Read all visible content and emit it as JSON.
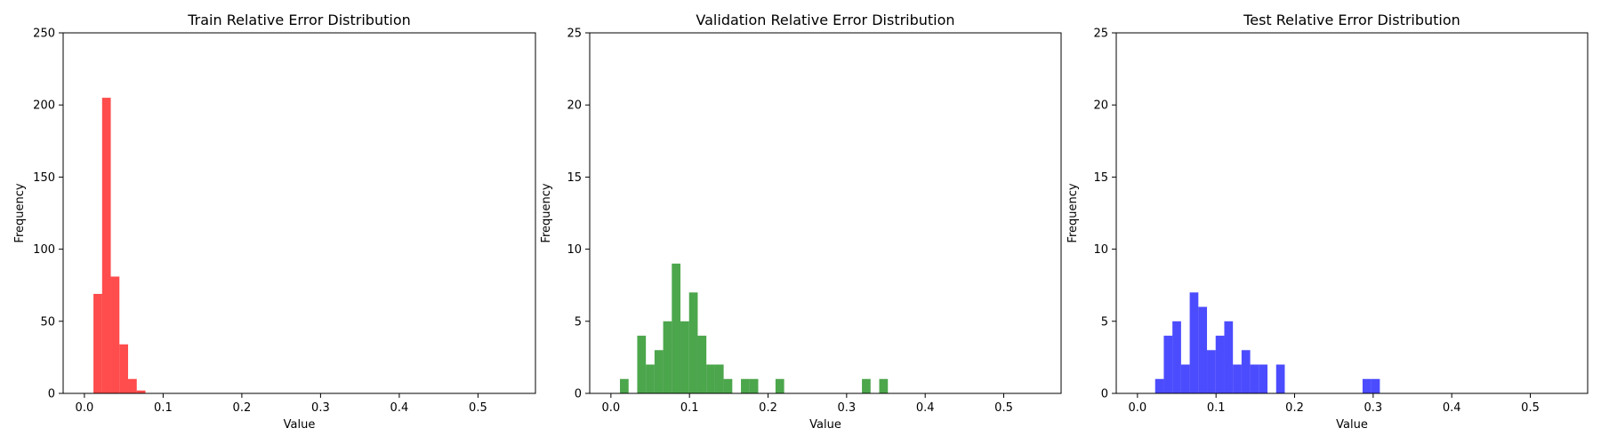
{
  "chart_data": [
    {
      "type": "bar",
      "title": "Train Relative Error Distribution",
      "xlabel": "Value",
      "ylabel": "Frequency",
      "xlim": [
        -0.027,
        0.573
      ],
      "ylim": [
        0,
        250
      ],
      "xticks": [
        "0.0",
        "0.1",
        "0.2",
        "0.3",
        "0.4",
        "0.5"
      ],
      "yticks": [
        "0",
        "50",
        "100",
        "150",
        "200",
        "250"
      ],
      "color": "#ff0000",
      "alpha": 0.7,
      "bins": [
        {
          "x0": 0.0115,
          "x1": 0.0225,
          "value": 69
        },
        {
          "x0": 0.0225,
          "x1": 0.0335,
          "value": 205
        },
        {
          "x0": 0.0335,
          "x1": 0.0445,
          "value": 81
        },
        {
          "x0": 0.0445,
          "x1": 0.0555,
          "value": 34
        },
        {
          "x0": 0.0555,
          "x1": 0.0665,
          "value": 10
        },
        {
          "x0": 0.0665,
          "x1": 0.0775,
          "value": 2
        }
      ]
    },
    {
      "type": "bar",
      "title": "Validation Relative Error Distribution",
      "xlabel": "Value",
      "ylabel": "Frequency",
      "xlim": [
        -0.027,
        0.573
      ],
      "ylim": [
        0,
        25
      ],
      "xticks": [
        "0.0",
        "0.1",
        "0.2",
        "0.3",
        "0.4",
        "0.5"
      ],
      "yticks": [
        "0",
        "5",
        "10",
        "15",
        "20",
        "25"
      ],
      "color": "#008000",
      "alpha": 0.7,
      "bins": [
        {
          "x0": 0.0115,
          "x1": 0.0225,
          "value": 1
        },
        {
          "x0": 0.0335,
          "x1": 0.0445,
          "value": 4
        },
        {
          "x0": 0.0445,
          "x1": 0.0555,
          "value": 2
        },
        {
          "x0": 0.0555,
          "x1": 0.0665,
          "value": 3
        },
        {
          "x0": 0.0665,
          "x1": 0.0775,
          "value": 5
        },
        {
          "x0": 0.0775,
          "x1": 0.0885,
          "value": 9
        },
        {
          "x0": 0.0885,
          "x1": 0.0995,
          "value": 5
        },
        {
          "x0": 0.0995,
          "x1": 0.1105,
          "value": 7
        },
        {
          "x0": 0.1105,
          "x1": 0.1215,
          "value": 4
        },
        {
          "x0": 0.1215,
          "x1": 0.1325,
          "value": 2
        },
        {
          "x0": 0.1325,
          "x1": 0.1435,
          "value": 2
        },
        {
          "x0": 0.1435,
          "x1": 0.1545,
          "value": 1
        },
        {
          "x0": 0.1655,
          "x1": 0.1765,
          "value": 1
        },
        {
          "x0": 0.1765,
          "x1": 0.1875,
          "value": 1
        },
        {
          "x0": 0.2095,
          "x1": 0.2205,
          "value": 1
        },
        {
          "x0": 0.3195,
          "x1": 0.3305,
          "value": 1
        },
        {
          "x0": 0.3415,
          "x1": 0.3525,
          "value": 1
        }
      ]
    },
    {
      "type": "bar",
      "title": "Test Relative Error Distribution",
      "xlabel": "Value",
      "ylabel": "Frequency",
      "xlim": [
        -0.027,
        0.573
      ],
      "ylim": [
        0,
        25
      ],
      "xticks": [
        "0.0",
        "0.1",
        "0.2",
        "0.3",
        "0.4",
        "0.5"
      ],
      "yticks": [
        "0",
        "5",
        "10",
        "15",
        "20",
        "25"
      ],
      "color": "#0000ff",
      "alpha": 0.7,
      "bins": [
        {
          "x0": 0.0225,
          "x1": 0.0335,
          "value": 1
        },
        {
          "x0": 0.0335,
          "x1": 0.0445,
          "value": 4
        },
        {
          "x0": 0.0445,
          "x1": 0.0555,
          "value": 5
        },
        {
          "x0": 0.0555,
          "x1": 0.0665,
          "value": 2
        },
        {
          "x0": 0.0665,
          "x1": 0.0775,
          "value": 7
        },
        {
          "x0": 0.0775,
          "x1": 0.0885,
          "value": 6
        },
        {
          "x0": 0.0885,
          "x1": 0.0995,
          "value": 3
        },
        {
          "x0": 0.0995,
          "x1": 0.1105,
          "value": 4
        },
        {
          "x0": 0.1105,
          "x1": 0.1215,
          "value": 5
        },
        {
          "x0": 0.1215,
          "x1": 0.1325,
          "value": 2
        },
        {
          "x0": 0.1325,
          "x1": 0.1435,
          "value": 3
        },
        {
          "x0": 0.1435,
          "x1": 0.1545,
          "value": 2
        },
        {
          "x0": 0.1545,
          "x1": 0.1655,
          "value": 2
        },
        {
          "x0": 0.1765,
          "x1": 0.1875,
          "value": 2
        },
        {
          "x0": 0.2865,
          "x1": 0.2975,
          "value": 1
        },
        {
          "x0": 0.2975,
          "x1": 0.3085,
          "value": 1
        }
      ]
    }
  ]
}
